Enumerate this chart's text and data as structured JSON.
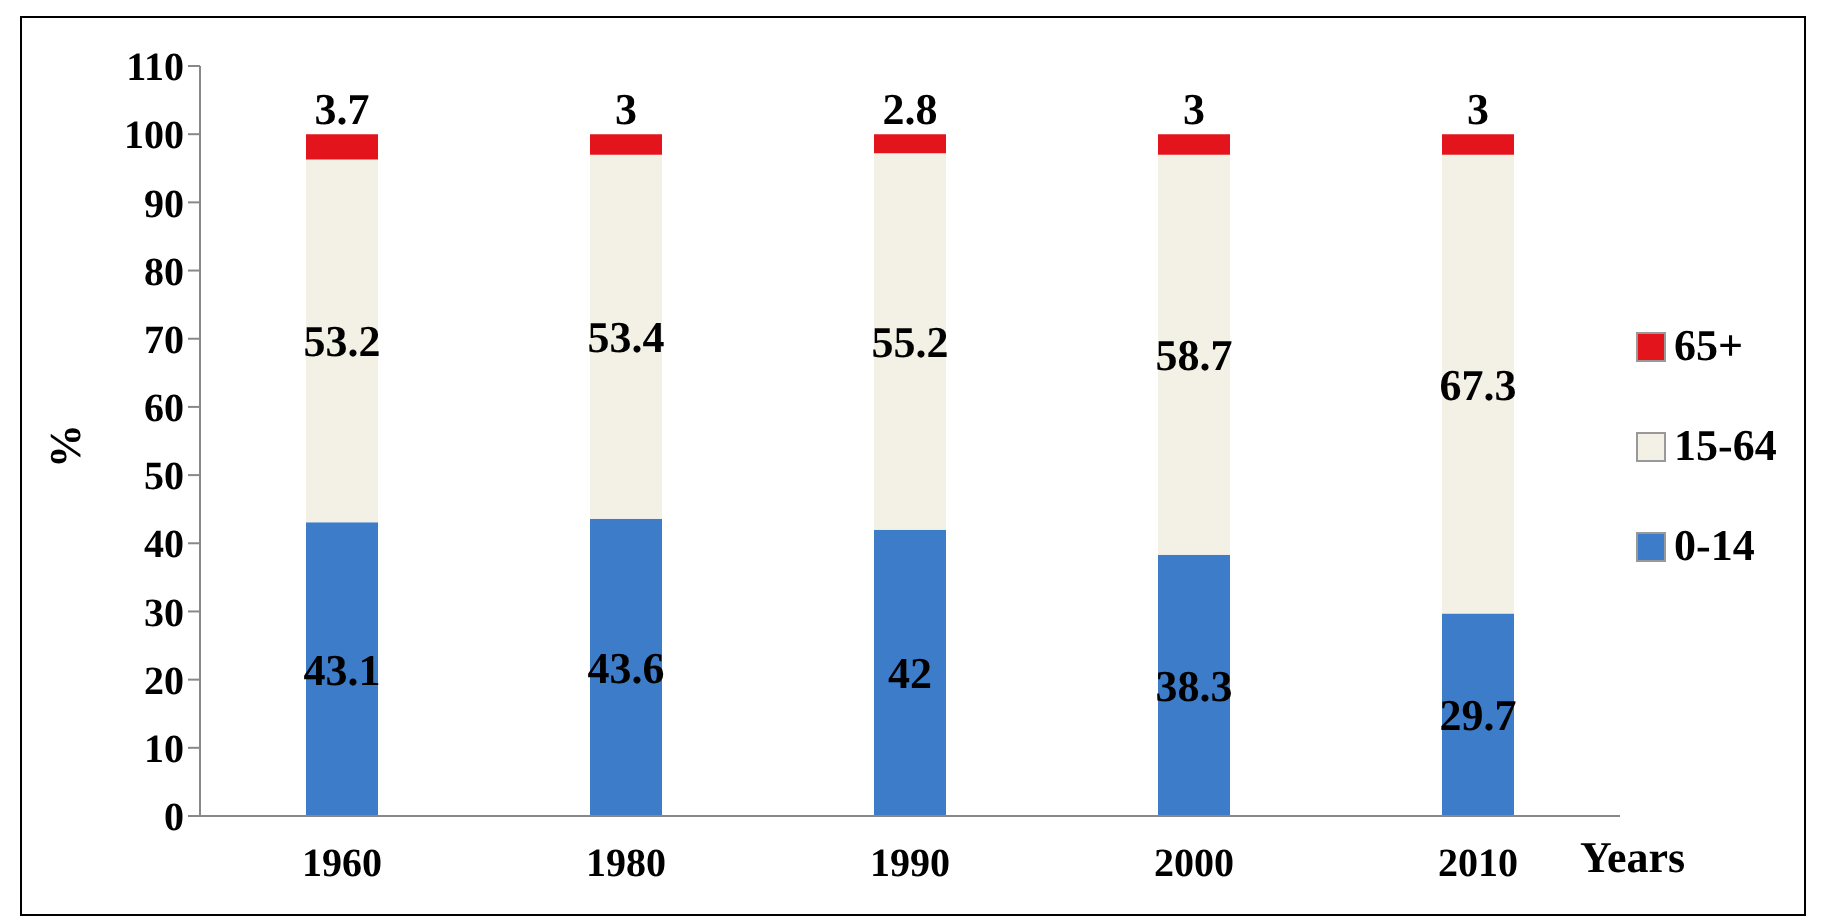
{
  "chart_data": {
    "type": "bar",
    "stacked": true,
    "categories": [
      "1960",
      "1980",
      "1990",
      "2000",
      "2010"
    ],
    "series": [
      {
        "name": "0-14",
        "color": "#3d7cc9",
        "values": [
          43.1,
          43.6,
          42,
          38.3,
          29.7
        ]
      },
      {
        "name": "15-64",
        "color": "#f3f1e6",
        "values": [
          53.2,
          53.4,
          55.2,
          58.7,
          67.3
        ]
      },
      {
        "name": "65+",
        "color": "#e3141b",
        "values": [
          3.7,
          3,
          2.8,
          3,
          3
        ]
      }
    ],
    "ylim": [
      0,
      110
    ],
    "yticks": [
      0,
      10,
      20,
      30,
      40,
      50,
      60,
      70,
      80,
      90,
      100,
      110
    ],
    "ylabel": "%",
    "xlabel": "Years",
    "data_labels": true,
    "legend": "right",
    "grid": false
  }
}
